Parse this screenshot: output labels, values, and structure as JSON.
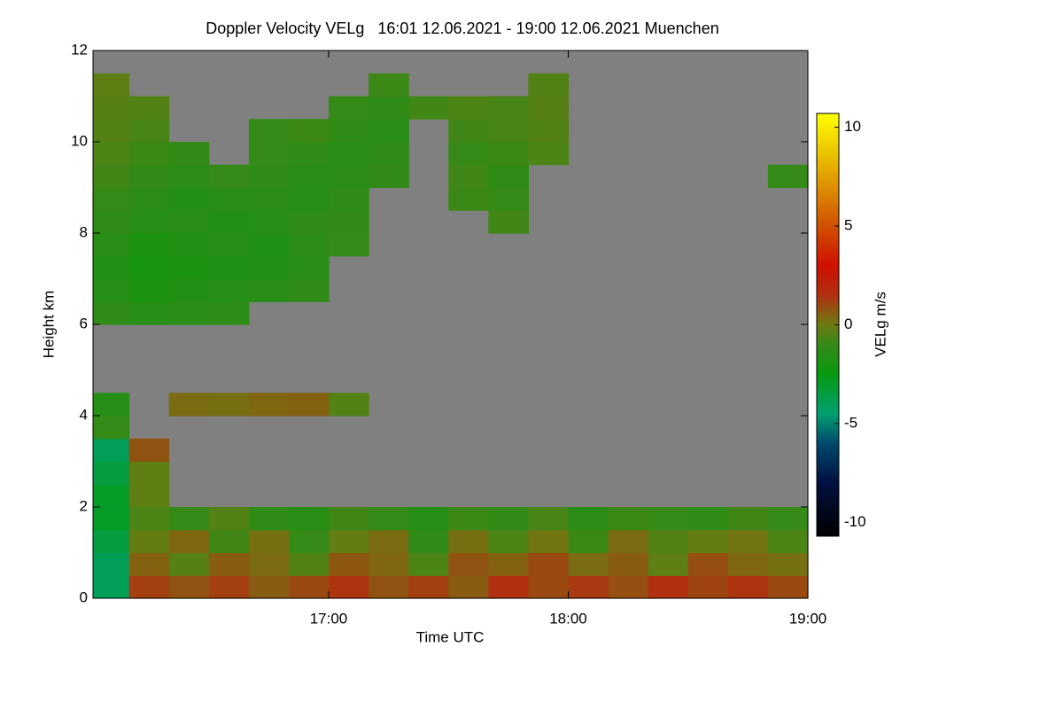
{
  "chart_data": {
    "type": "heatmap",
    "title": "Doppler Velocity VELg   16:01 12.06.2021 - 19:00 12.06.2021 Muenchen",
    "xlabel": "Time UTC",
    "ylabel": "Height km",
    "colorbar_label": "VELg m/s",
    "background": "#808080",
    "xlim": [
      16.0167,
      19.0
    ],
    "xticks": [
      {
        "value": 17,
        "label": "17:00"
      },
      {
        "value": 18,
        "label": "18:00"
      },
      {
        "value": 19,
        "label": "19:00"
      }
    ],
    "ylim": [
      0,
      12
    ],
    "yticks": [
      0,
      2,
      4,
      6,
      8,
      10,
      12
    ],
    "clim": [
      -10.7,
      10.7
    ],
    "cticks": [
      -10,
      -5,
      0,
      5,
      10
    ],
    "colorscale": [
      [
        -10.7,
        "#000000"
      ],
      [
        -8,
        "#001040"
      ],
      [
        -6,
        "#00486c"
      ],
      [
        -4.5,
        "#00a070"
      ],
      [
        -2.5,
        "#089a10"
      ],
      [
        -1,
        "#358a18"
      ],
      [
        0,
        "#6e7a12"
      ],
      [
        1.5,
        "#b03010"
      ],
      [
        3,
        "#d01000"
      ],
      [
        5,
        "#d05000"
      ],
      [
        7.5,
        "#e0a000"
      ],
      [
        10.7,
        "#ffff00"
      ]
    ],
    "xbins": [
      16.0167,
      16.1667,
      16.3333,
      16.5,
      16.6667,
      16.8333,
      17,
      17.1667,
      17.3333,
      17.5,
      17.6667,
      17.8333,
      18,
      18.1667,
      18.3333,
      18.5,
      18.6667,
      18.8333,
      19
    ],
    "ybins": [
      0,
      0.5,
      1,
      1.5,
      2,
      2.5,
      3,
      3.5,
      4,
      4.5,
      5,
      5.5,
      6,
      6.5,
      7,
      7.5,
      8,
      8.5,
      9,
      9.5,
      10,
      10.5,
      11,
      11.5,
      12
    ],
    "z": [
      [
        -4,
        1.2,
        0.8,
        1.2,
        0.6,
        1,
        1.4,
        0.8,
        1.2,
        0.6,
        1.5,
        1,
        1.3,
        0.9,
        1.5,
        1.1,
        1.4,
        1.0
      ],
      [
        -4,
        0.5,
        -0.4,
        0.6,
        0.3,
        -0.5,
        0.7,
        0.4,
        -0.6,
        0.8,
        0.5,
        1.0,
        0.3,
        0.6,
        -0.3,
        0.9,
        0.4,
        0.2
      ],
      [
        -3.5,
        -0.2,
        0.4,
        -0.8,
        0.2,
        -1.0,
        -0.2,
        0.3,
        -1.2,
        0.2,
        -0.6,
        0.1,
        -0.9,
        0.3,
        -0.5,
        -0.2,
        0.1,
        -0.6
      ],
      [
        -3,
        -0.6,
        -1.0,
        -0.5,
        -1.2,
        -1.4,
        -0.8,
        -1.0,
        -1.5,
        -0.9,
        -1.1,
        -0.7,
        -1.3,
        -0.9,
        -1.0,
        -1.2,
        -0.8,
        -1.0
      ],
      [
        -3,
        -0.3,
        null,
        null,
        null,
        null,
        null,
        null,
        null,
        null,
        null,
        null,
        null,
        null,
        null,
        null,
        null,
        null
      ],
      [
        -3.5,
        -0.3,
        null,
        null,
        null,
        null,
        null,
        null,
        null,
        null,
        null,
        null,
        null,
        null,
        null,
        null,
        null,
        null
      ],
      [
        -4,
        0.8,
        null,
        null,
        null,
        null,
        null,
        null,
        null,
        null,
        null,
        null,
        null,
        null,
        null,
        null,
        null,
        null
      ],
      [
        -1,
        null,
        null,
        null,
        null,
        null,
        null,
        null,
        null,
        null,
        null,
        null,
        null,
        null,
        null,
        null,
        null,
        null
      ],
      [
        -1.5,
        null,
        0.3,
        0.2,
        0.4,
        0.5,
        -0.5,
        null,
        null,
        null,
        null,
        null,
        null,
        null,
        null,
        null,
        null,
        null
      ],
      [
        null,
        null,
        null,
        null,
        null,
        null,
        null,
        null,
        null,
        null,
        null,
        null,
        null,
        null,
        null,
        null,
        null,
        null
      ],
      [
        null,
        null,
        null,
        null,
        null,
        null,
        null,
        null,
        null,
        null,
        null,
        null,
        null,
        null,
        null,
        null,
        null,
        null
      ],
      [
        null,
        null,
        null,
        null,
        null,
        null,
        null,
        null,
        null,
        null,
        null,
        null,
        null,
        null,
        null,
        null,
        null,
        null
      ],
      [
        -1.2,
        -1.5,
        -1.4,
        -1.3,
        null,
        null,
        null,
        null,
        null,
        null,
        null,
        null,
        null,
        null,
        null,
        null,
        null,
        null
      ],
      [
        -1.5,
        -1.8,
        -1.6,
        -1.5,
        -1.4,
        -1.2,
        null,
        null,
        null,
        null,
        null,
        null,
        null,
        null,
        null,
        null,
        null,
        null
      ],
      [
        -1.6,
        -2,
        -1.8,
        -1.7,
        -1.6,
        -1.4,
        null,
        null,
        null,
        null,
        null,
        null,
        null,
        null,
        null,
        null,
        null,
        null
      ],
      [
        -1.4,
        -1.8,
        -1.6,
        -1.5,
        -1.7,
        -1.3,
        -1.0,
        null,
        null,
        null,
        null,
        null,
        null,
        null,
        null,
        null,
        null,
        null
      ],
      [
        -1.2,
        -1.5,
        -1.4,
        -1.6,
        -1.5,
        -1.2,
        -1.1,
        null,
        null,
        null,
        -0.8,
        null,
        null,
        null,
        null,
        null,
        null,
        null
      ],
      [
        -1,
        -1.3,
        -1.6,
        -1.4,
        -1.3,
        -1.5,
        -1.2,
        null,
        null,
        -0.9,
        -1.0,
        null,
        null,
        null,
        null,
        null,
        null,
        null
      ],
      [
        -0.8,
        -1.1,
        -1.3,
        -1.0,
        -1.2,
        -1.4,
        -1.3,
        -1.1,
        null,
        -0.8,
        -1.2,
        null,
        null,
        null,
        null,
        null,
        null,
        -1.0
      ],
      [
        -0.6,
        -0.9,
        -1.1,
        null,
        -1.0,
        -1.2,
        -1.4,
        -1.2,
        null,
        -1.0,
        -0.9,
        -0.6,
        null,
        null,
        null,
        null,
        null,
        null
      ],
      [
        -0.5,
        -0.7,
        null,
        null,
        -1.0,
        -0.9,
        -1.2,
        -1.4,
        null,
        -0.8,
        -0.7,
        -0.5,
        null,
        null,
        null,
        null,
        null,
        null
      ],
      [
        -0.4,
        -0.5,
        null,
        null,
        null,
        null,
        -1.0,
        -1.2,
        -0.8,
        -0.6,
        -0.7,
        -0.4,
        null,
        null,
        null,
        null,
        null,
        null
      ],
      [
        -0.3,
        null,
        null,
        null,
        null,
        null,
        null,
        -0.9,
        null,
        null,
        null,
        -0.5,
        null,
        null,
        null,
        null,
        null,
        null
      ],
      [
        null,
        null,
        null,
        null,
        null,
        null,
        null,
        null,
        null,
        null,
        null,
        null,
        null,
        null,
        null,
        null,
        null,
        null
      ]
    ]
  }
}
